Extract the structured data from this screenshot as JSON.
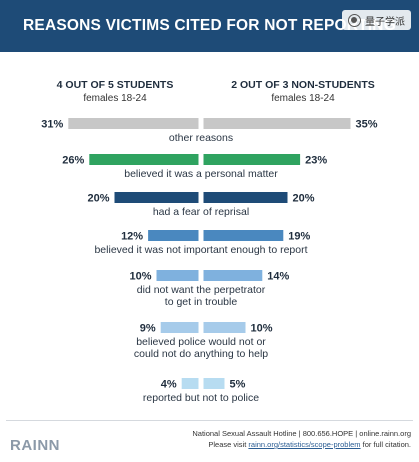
{
  "header": {
    "title": "REASONS VICTIMS CITED FOR NOT REPORTING"
  },
  "watermark": {
    "text": "量子学派"
  },
  "groups": {
    "left": {
      "title": "4 OUT OF 5 STUDENTS",
      "subtitle": "females 18-24"
    },
    "right": {
      "title": "2 OUT OF 3 NON-STUDENTS",
      "subtitle": "females 18-24"
    }
  },
  "chart_data": {
    "type": "bar",
    "layout": "diverging-butterfly",
    "categories": [
      [
        "other reasons"
      ],
      [
        "believed it was a personal matter"
      ],
      [
        "had a fear of reprisal"
      ],
      [
        "believed it was not important enough to report"
      ],
      [
        "did not want the perpetrator",
        "to get in trouble"
      ],
      [
        "believed police would not or",
        "could not do anything to help"
      ],
      [
        "reported but not to police"
      ]
    ],
    "series": [
      {
        "name": "4 OUT OF 5 STUDENTS",
        "values": [
          31,
          26,
          20,
          12,
          10,
          9,
          4
        ]
      },
      {
        "name": "2 OUT OF 3 NON-STUDENTS",
        "values": [
          35,
          23,
          20,
          19,
          14,
          10,
          5
        ]
      }
    ],
    "value_suffix": "%",
    "bar_colors": [
      "#c7c7c7",
      "#2fa360",
      "#1e4b77",
      "#4a88bf",
      "#7fb1de",
      "#a6cbea",
      "#b7dcf1"
    ],
    "xlim": [
      0,
      35
    ]
  },
  "footer": {
    "logo": "RAINN",
    "line1": "National Sexual Assault Hotline | 800.656.HOPE | online.rainn.org",
    "line2_prefix": "Please visit",
    "line2_link": "rainn.org/statistics/scope-problem",
    "line2_suffix": "for full citation."
  }
}
